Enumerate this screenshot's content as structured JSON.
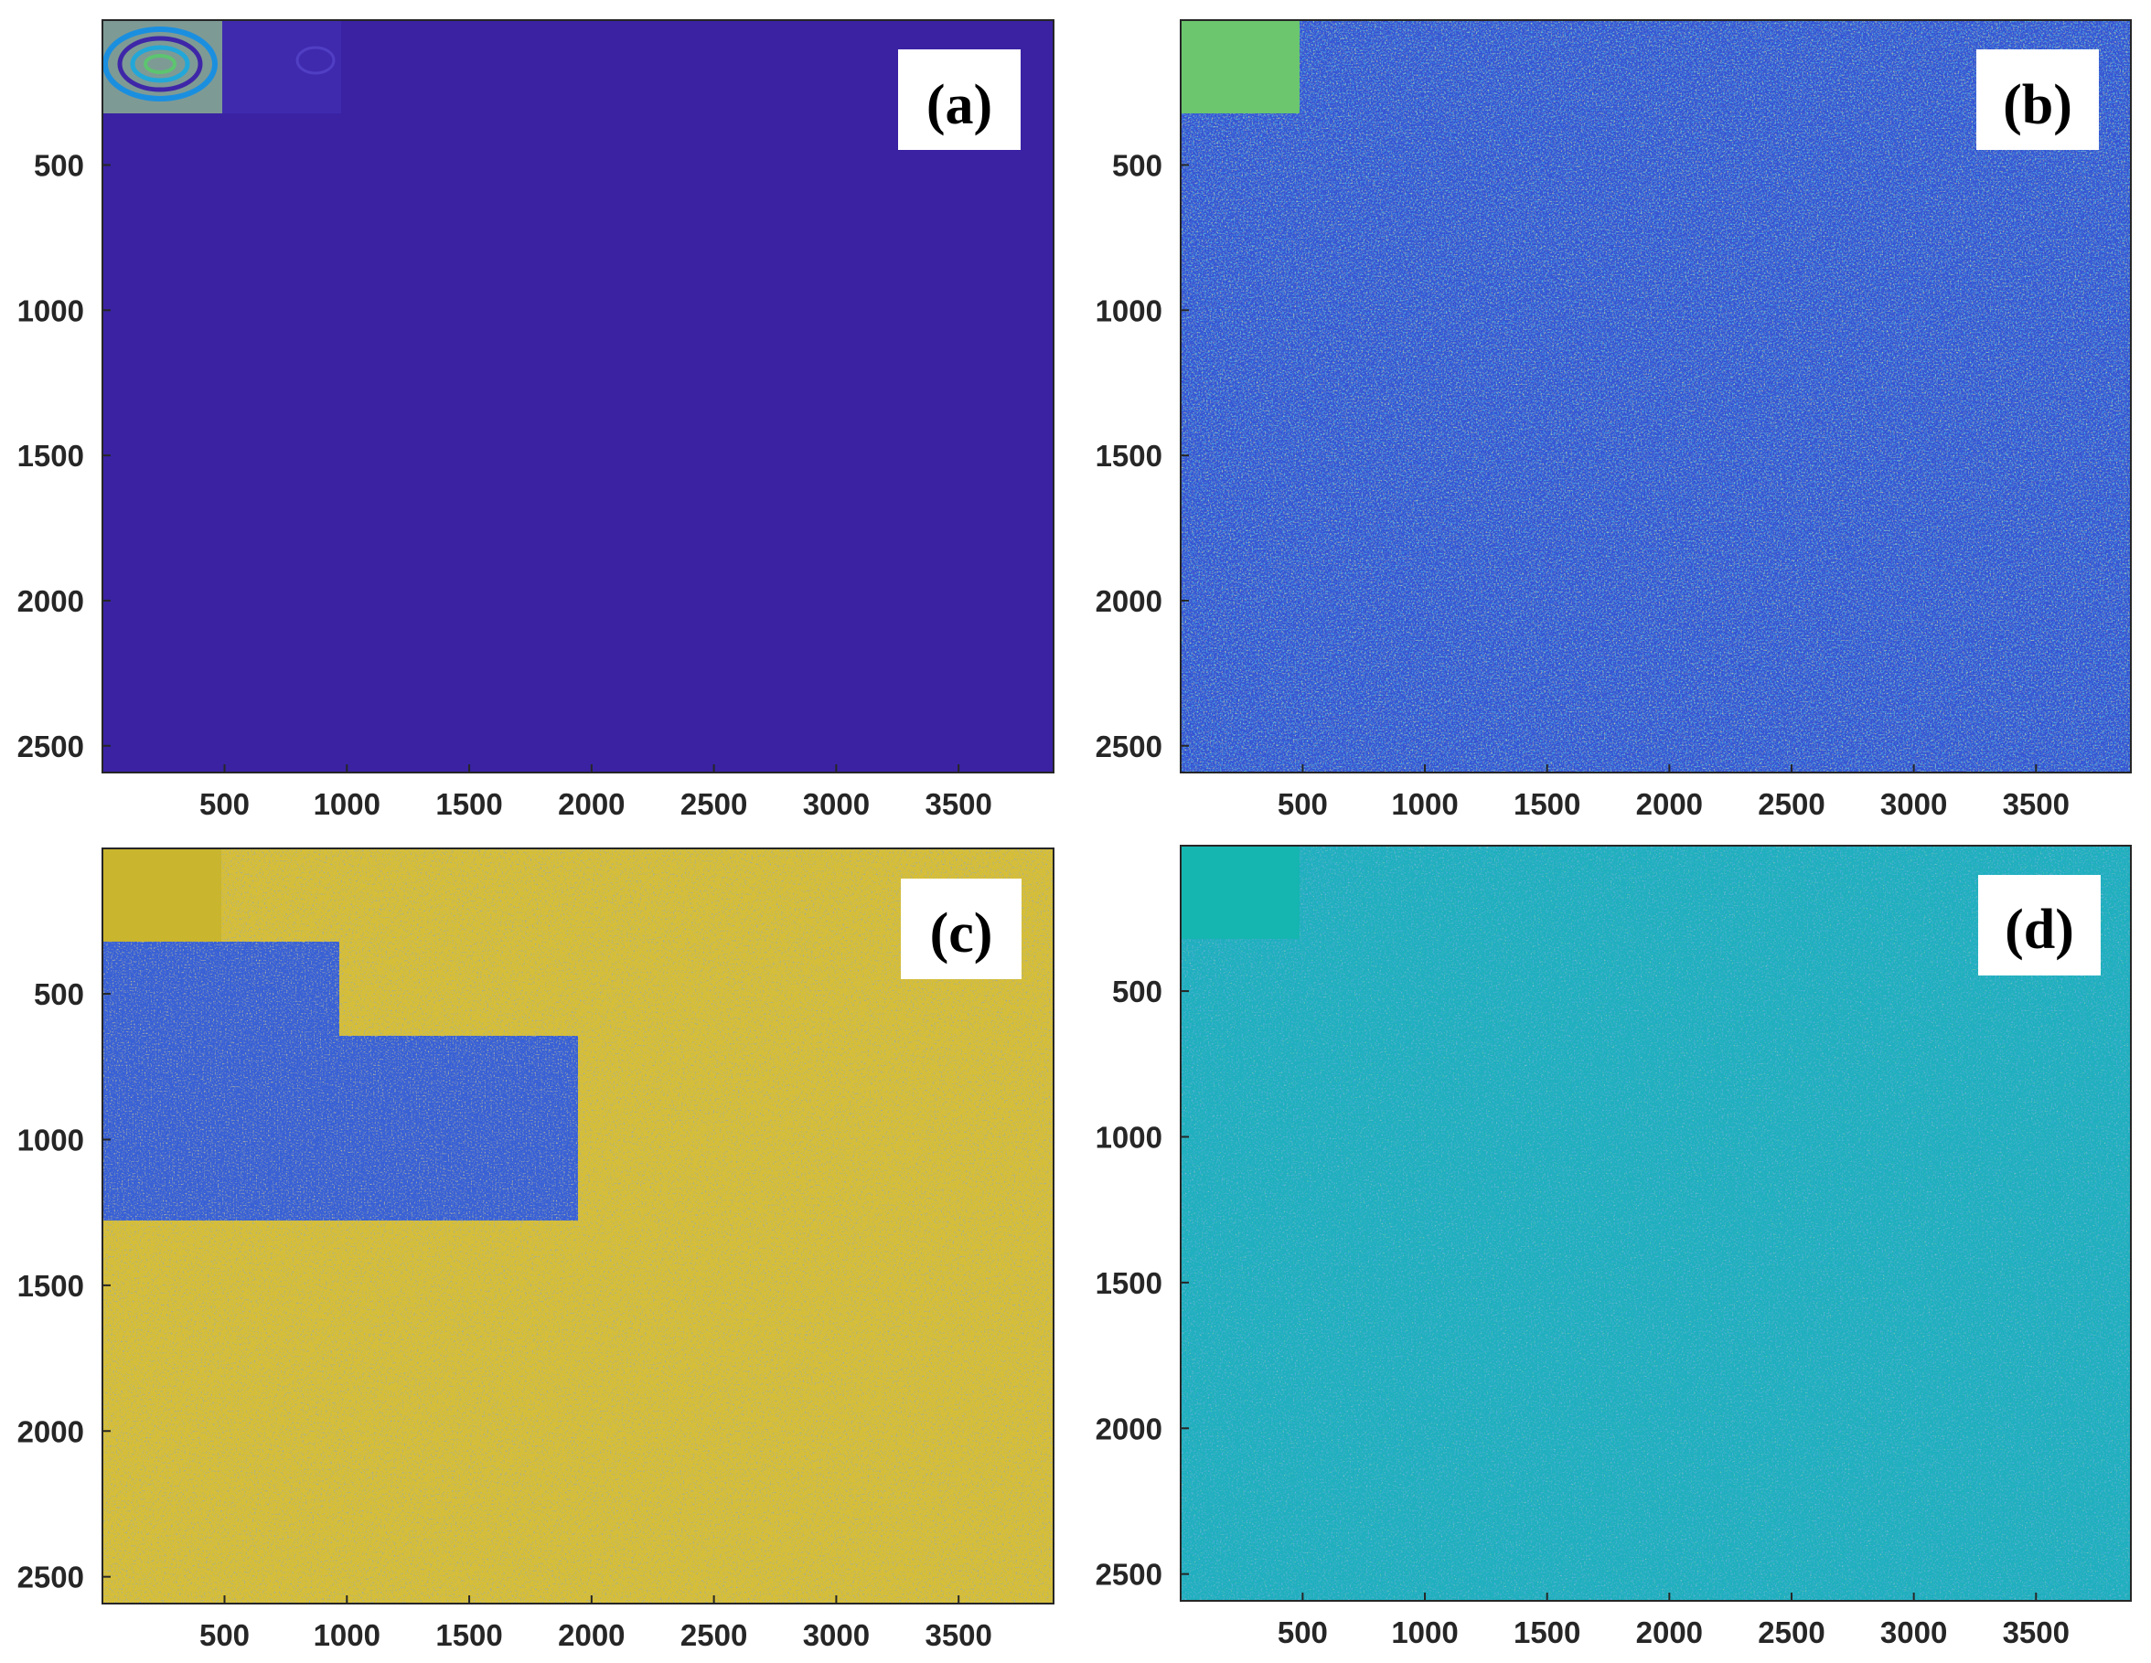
{
  "figure": {
    "colors": {
      "parula_dark_blue": "#3E26A8",
      "parula_blue": "#2C73E3",
      "parula_cyan": "#15B5B0",
      "parula_green": "#6BC66E",
      "parula_yellow": "#E8C42F",
      "axis": "#262626",
      "label_box": "#ffffff"
    }
  },
  "chart_data": [
    {
      "type": "heatmap",
      "panel_label": "(a)",
      "xlim": [
        1,
        3888
      ],
      "ylim": [
        1,
        2592
      ],
      "y_reversed": true,
      "xticks": [
        500,
        1000,
        1500,
        2000,
        2500,
        3000,
        3500
      ],
      "xtick_labels": [
        "500",
        "1000",
        "1500",
        "2000",
        "2500",
        "3000",
        "3500"
      ],
      "yticks": [
        500,
        1000,
        1500,
        2000,
        2500
      ],
      "ytick_labels": [
        "500",
        "1000",
        "1500",
        "2000",
        "2500"
      ],
      "colormap": "parula",
      "background": "uniform dark blue",
      "blocks": [
        {
          "x": [
            1,
            486
          ],
          "y": [
            1,
            324
          ],
          "pattern": "elliptical concentric rings, mixed blue/cyan/yellow"
        },
        {
          "x": [
            486,
            972
          ],
          "y": [
            1,
            324
          ],
          "pattern": "faint dark-blue texture"
        }
      ]
    },
    {
      "type": "heatmap",
      "panel_label": "(b)",
      "xlim": [
        1,
        3888
      ],
      "ylim": [
        1,
        2592
      ],
      "y_reversed": true,
      "xticks": [
        500,
        1000,
        1500,
        2000,
        2500,
        3000,
        3500
      ],
      "xtick_labels": [
        "500",
        "1000",
        "1500",
        "2000",
        "2500",
        "3000",
        "3500"
      ],
      "yticks": [
        500,
        1000,
        1500,
        2000,
        2500
      ],
      "ytick_labels": [
        "500",
        "1000",
        "1500",
        "2000",
        "2500"
      ],
      "colormap": "parula",
      "background": "random noise, blue dominant with cyan/yellow speckle",
      "blocks": [
        {
          "x": [
            1,
            486
          ],
          "y": [
            1,
            324
          ],
          "pattern": "smooth green"
        }
      ]
    },
    {
      "type": "heatmap",
      "panel_label": "(c)",
      "xlim": [
        1,
        3888
      ],
      "ylim": [
        1,
        2592
      ],
      "y_reversed": true,
      "xticks": [
        500,
        1000,
        1500,
        2000,
        2500,
        3000,
        3500
      ],
      "xtick_labels": [
        "500",
        "1000",
        "1500",
        "2000",
        "2500",
        "3000",
        "3500"
      ],
      "yticks": [
        500,
        1000,
        1500,
        2000,
        2500
      ],
      "ytick_labels": [
        "500",
        "1000",
        "1500",
        "2000",
        "2500"
      ],
      "colormap": "parula",
      "background": "random noise, yellow dominant",
      "blocks": [
        {
          "x": [
            1,
            486
          ],
          "y": [
            1,
            324
          ],
          "pattern": "smooth olive yellow"
        },
        {
          "x": [
            486,
            972
          ],
          "y": [
            1,
            324
          ],
          "pattern": "yellow noise"
        },
        {
          "x": [
            1,
            972
          ],
          "y": [
            324,
            648
          ],
          "pattern": "blue noise"
        },
        {
          "x": [
            1,
            1944
          ],
          "y": [
            648,
            1296
          ],
          "pattern": "blue noise"
        }
      ]
    },
    {
      "type": "heatmap",
      "panel_label": "(d)",
      "xlim": [
        1,
        3888
      ],
      "ylim": [
        1,
        2592
      ],
      "y_reversed": true,
      "xticks": [
        500,
        1000,
        1500,
        2000,
        2500,
        3000,
        3500
      ],
      "xtick_labels": [
        "500",
        "1000",
        "1500",
        "2000",
        "2500",
        "3000",
        "3500"
      ],
      "yticks": [
        500,
        1000,
        1500,
        2000,
        2500
      ],
      "ytick_labels": [
        "500",
        "1000",
        "1500",
        "2000",
        "2500"
      ],
      "colormap": "parula",
      "background": "random noise, cyan dominant",
      "blocks": [
        {
          "x": [
            1,
            486
          ],
          "y": [
            1,
            324
          ],
          "pattern": "smooth teal"
        }
      ]
    }
  ]
}
